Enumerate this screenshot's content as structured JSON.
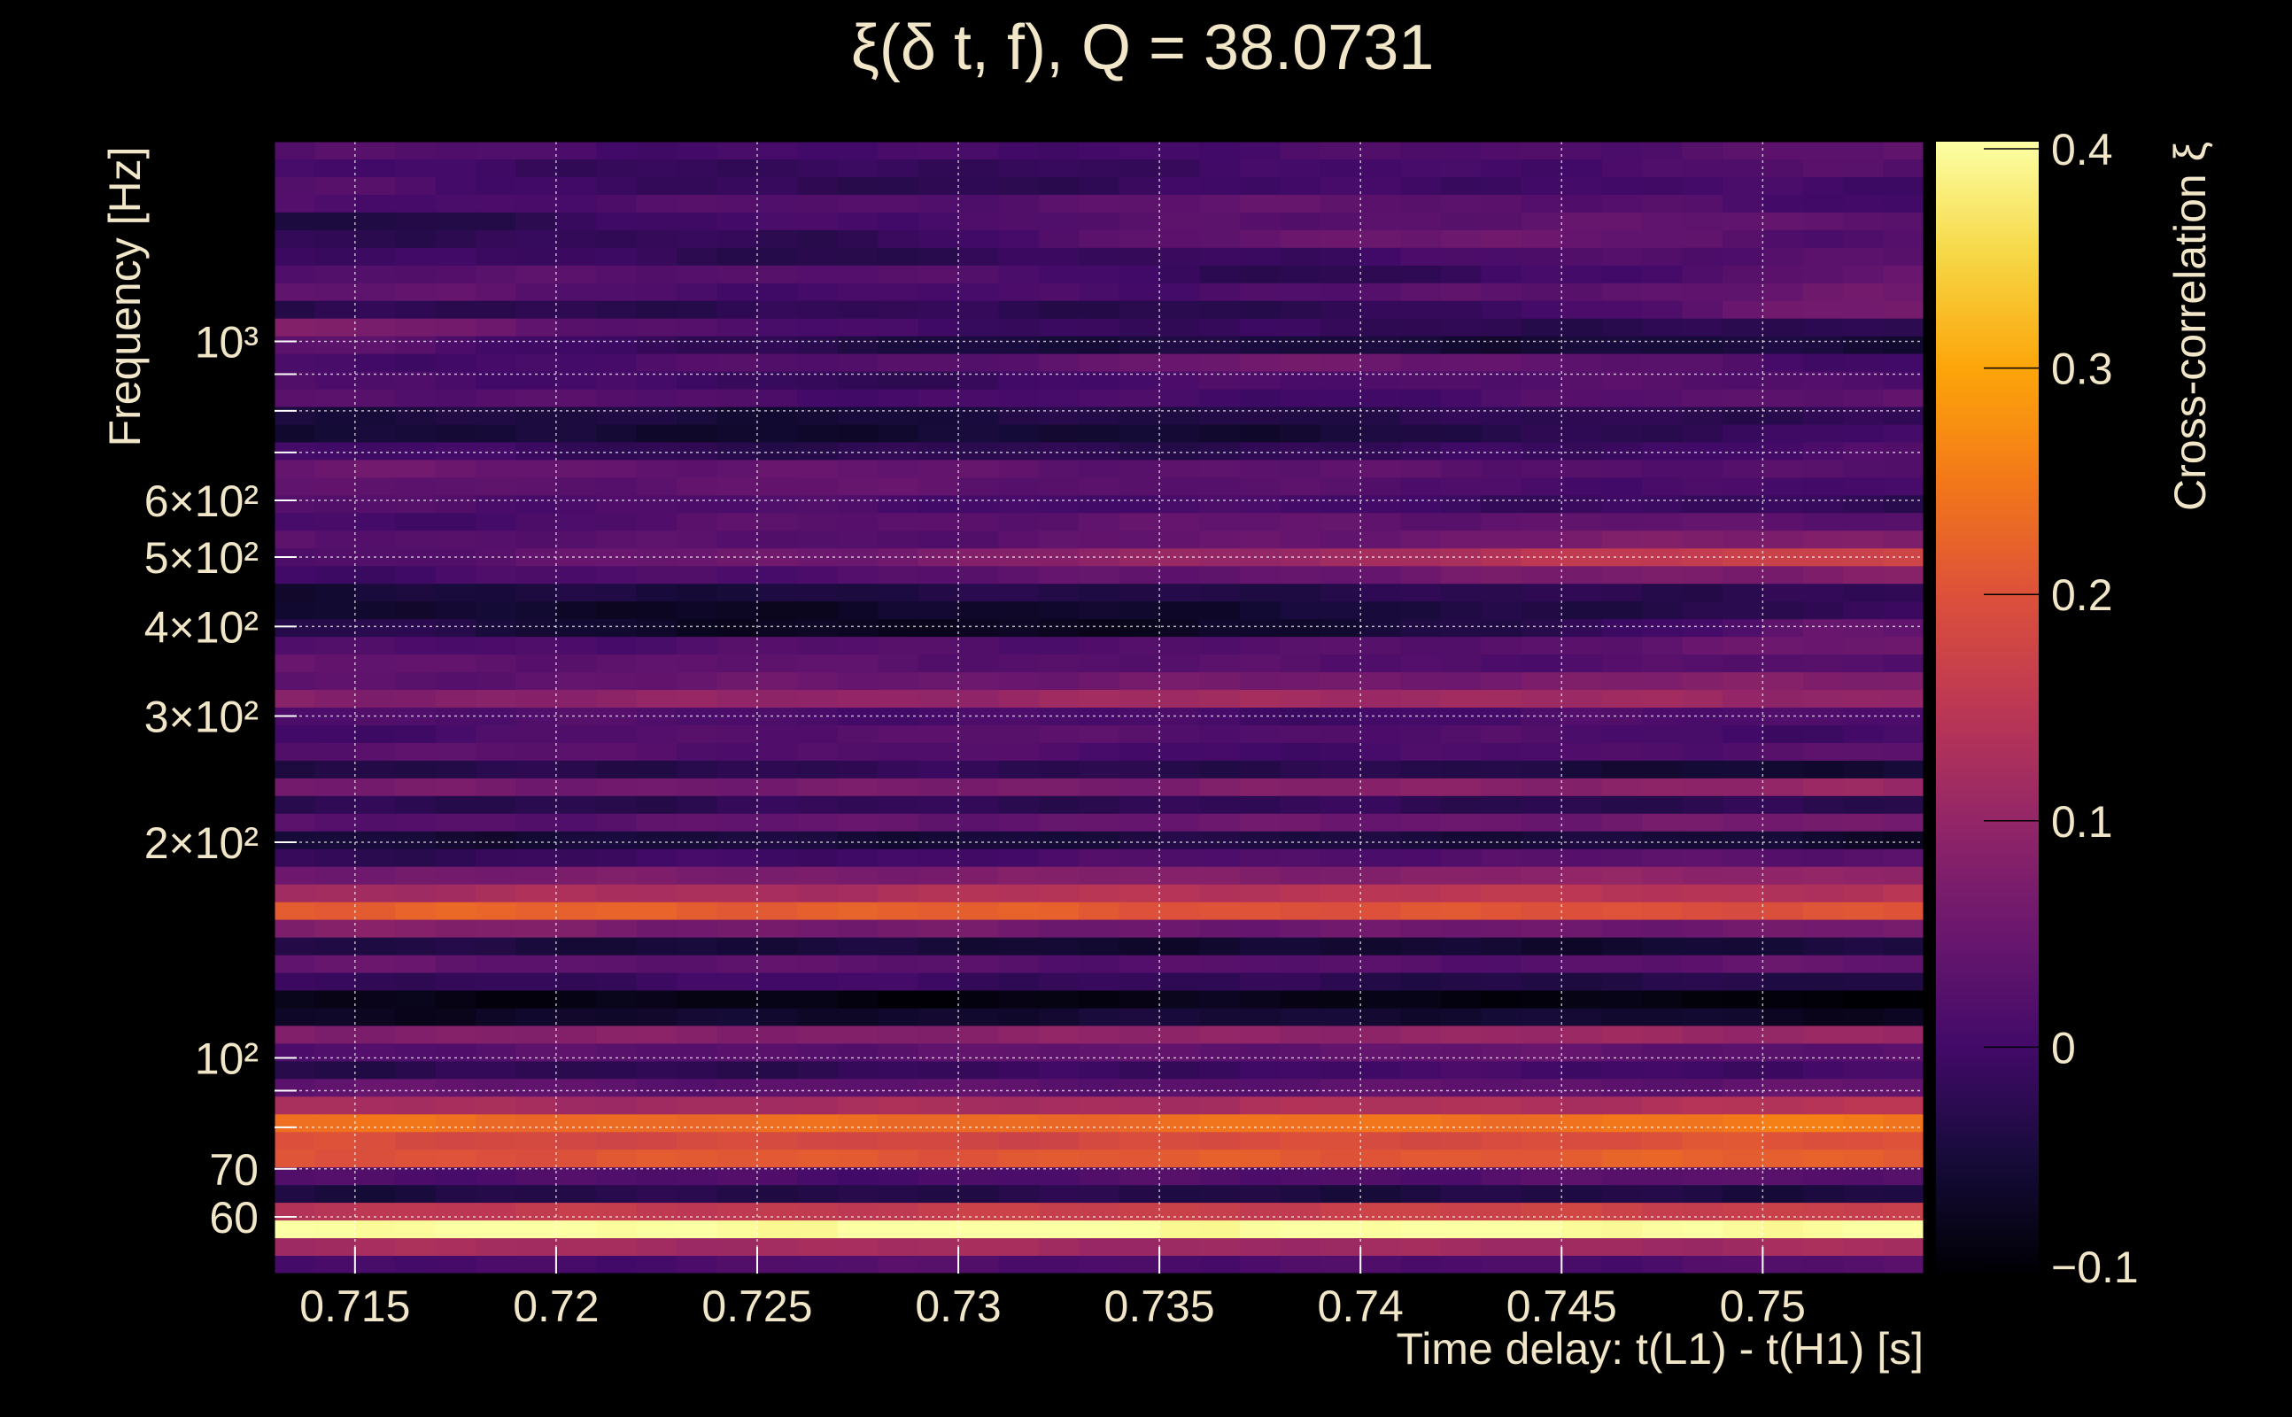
{
  "chart_data": {
    "type": "heatmap",
    "title": "ξ(δ t, f), Q = 38.0731",
    "xlabel": "Time delay: t(L1) - t(H1) [s]",
    "ylabel": "Frequency [Hz]",
    "colorbar_label": "Cross-correlation ξ",
    "xlim": [
      0.713,
      0.754
    ],
    "ylim": [
      50,
      1900
    ],
    "yscale": "log",
    "clim": [
      -0.1,
      0.4
    ],
    "colormap": "inferno",
    "grid": true,
    "x_ticks": [
      {
        "value": 0.715,
        "label": "0.715"
      },
      {
        "value": 0.72,
        "label": "0.72"
      },
      {
        "value": 0.725,
        "label": "0.725"
      },
      {
        "value": 0.73,
        "label": "0.73"
      },
      {
        "value": 0.735,
        "label": "0.735"
      },
      {
        "value": 0.74,
        "label": "0.74"
      },
      {
        "value": 0.745,
        "label": "0.745"
      },
      {
        "value": 0.75,
        "label": "0.75"
      }
    ],
    "y_ticks": [
      {
        "value": 60,
        "label": "60"
      },
      {
        "value": 70,
        "label": "70"
      },
      {
        "value": 100,
        "label": "10²"
      },
      {
        "value": 200,
        "label": "2×10²"
      },
      {
        "value": 300,
        "label": "3×10²"
      },
      {
        "value": 400,
        "label": "4×10²"
      },
      {
        "value": 500,
        "label": "5×10²"
      },
      {
        "value": 600,
        "label": "6×10²"
      },
      {
        "value": 1000,
        "label": "10³"
      }
    ],
    "y_minor_grid": [
      80,
      90,
      700,
      800,
      900
    ],
    "colorbar_ticks": [
      {
        "value": 0.4,
        "label": "0.4"
      },
      {
        "value": 0.3,
        "label": "0.3"
      },
      {
        "value": 0.2,
        "label": "0.2"
      },
      {
        "value": 0.1,
        "label": "0.1"
      },
      {
        "value": 0,
        "label": "0"
      },
      {
        "value": -0.1,
        "label": "−0.1"
      }
    ],
    "time_anchors": [
      0.715,
      0.727,
      0.74,
      0.752
    ],
    "n_time_bins": 41,
    "rows_top_to_bottom": [
      [
        0.02,
        0.0,
        0.01,
        0.03
      ],
      [
        0.0,
        -0.02,
        0.0,
        0.02
      ],
      [
        0.02,
        -0.03,
        0.0,
        0.0
      ],
      [
        0.01,
        0.02,
        0.04,
        0.0
      ],
      [
        -0.04,
        0.01,
        0.03,
        0.04
      ],
      [
        -0.02,
        -0.02,
        0.06,
        0.02
      ],
      [
        0.0,
        -0.03,
        0.0,
        0.03
      ],
      [
        0.02,
        0.03,
        -0.03,
        0.04
      ],
      [
        0.04,
        0.0,
        0.02,
        0.05
      ],
      [
        -0.03,
        -0.02,
        -0.03,
        0.06
      ],
      [
        0.07,
        0.0,
        -0.02,
        -0.03
      ],
      [
        0.03,
        -0.04,
        -0.05,
        -0.05
      ],
      [
        0.0,
        0.02,
        0.06,
        0.0
      ],
      [
        0.02,
        -0.02,
        0.02,
        0.02
      ],
      [
        0.03,
        0.01,
        0.0,
        0.04
      ],
      [
        -0.04,
        -0.05,
        -0.03,
        -0.02
      ],
      [
        -0.05,
        -0.06,
        -0.05,
        0.0
      ],
      [
        0.0,
        -0.03,
        -0.02,
        0.01
      ],
      [
        0.05,
        0.04,
        0.03,
        0.02
      ],
      [
        0.03,
        0.04,
        0.02,
        0.0
      ],
      [
        0.02,
        0.01,
        0.0,
        -0.02
      ],
      [
        0.0,
        0.03,
        0.04,
        0.03
      ],
      [
        0.03,
        0.02,
        0.05,
        0.08
      ],
      [
        0.02,
        0.06,
        0.12,
        0.18
      ],
      [
        0.0,
        0.02,
        0.05,
        0.08
      ],
      [
        -0.05,
        -0.04,
        -0.03,
        -0.02
      ],
      [
        -0.06,
        -0.07,
        -0.05,
        -0.02
      ],
      [
        -0.03,
        -0.08,
        -0.06,
        0.04
      ],
      [
        0.01,
        0.02,
        0.02,
        0.05
      ],
      [
        0.04,
        0.03,
        0.02,
        0.02
      ],
      [
        0.03,
        0.05,
        0.06,
        0.08
      ],
      [
        0.08,
        0.1,
        0.12,
        0.1
      ],
      [
        0.02,
        0.01,
        0.0,
        0.02
      ],
      [
        0.0,
        0.03,
        0.02,
        0.0
      ],
      [
        0.03,
        0.02,
        0.0,
        0.03
      ],
      [
        -0.04,
        -0.02,
        -0.03,
        -0.06
      ],
      [
        0.06,
        0.06,
        0.08,
        0.1
      ],
      [
        -0.03,
        -0.02,
        -0.02,
        -0.03
      ],
      [
        0.02,
        0.04,
        0.05,
        0.06
      ],
      [
        -0.05,
        -0.05,
        -0.04,
        -0.06
      ],
      [
        -0.02,
        0.0,
        0.02,
        0.03
      ],
      [
        0.06,
        0.07,
        0.08,
        0.1
      ],
      [
        0.12,
        0.13,
        0.15,
        0.14
      ],
      [
        0.22,
        0.22,
        0.2,
        0.2
      ],
      [
        0.08,
        0.06,
        0.05,
        0.06
      ],
      [
        -0.04,
        -0.05,
        -0.06,
        -0.05
      ],
      [
        0.04,
        0.03,
        0.02,
        0.04
      ],
      [
        -0.02,
        0.0,
        -0.03,
        -0.04
      ],
      [
        -0.08,
        -0.09,
        -0.08,
        -0.1
      ],
      [
        -0.07,
        -0.06,
        -0.05,
        -0.07
      ],
      [
        0.08,
        0.08,
        0.1,
        0.11
      ],
      [
        0.02,
        0.03,
        0.04,
        0.03
      ],
      [
        -0.03,
        -0.02,
        0.0,
        0.0
      ],
      [
        0.04,
        0.03,
        0.03,
        0.04
      ],
      [
        0.12,
        0.12,
        0.13,
        0.14
      ],
      [
        0.24,
        0.23,
        0.24,
        0.25
      ],
      [
        0.19,
        0.18,
        0.19,
        0.2
      ],
      [
        0.2,
        0.21,
        0.21,
        0.22
      ],
      [
        0.02,
        0.01,
        0.02,
        0.03
      ],
      [
        -0.04,
        -0.03,
        -0.04,
        -0.04
      ],
      [
        0.15,
        0.16,
        0.17,
        0.17
      ],
      [
        0.4,
        0.4,
        0.4,
        0.4
      ],
      [
        0.12,
        0.12,
        0.11,
        0.12
      ],
      [
        0.0,
        0.02,
        0.01,
        0.02
      ]
    ]
  }
}
